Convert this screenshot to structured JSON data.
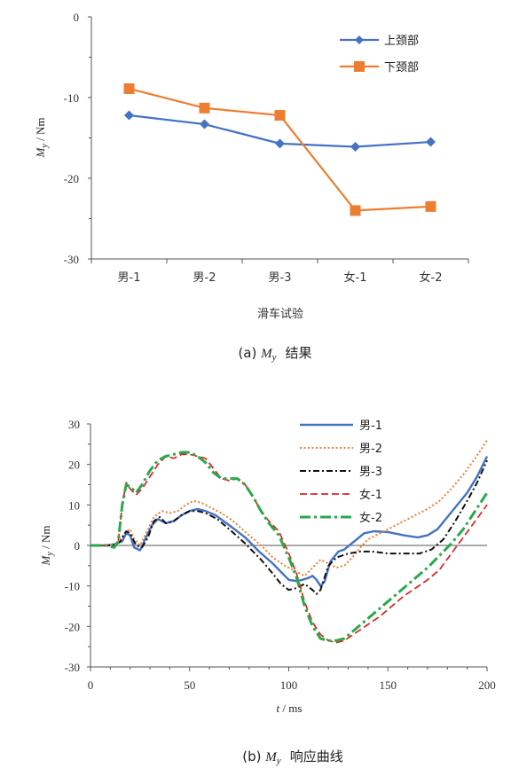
{
  "chart_data": [
    {
      "type": "line",
      "categories": [
        "男-1",
        "男-2",
        "男-3",
        "女-1",
        "女-2"
      ],
      "series": [
        {
          "name": "上颈部",
          "values": [
            -12.2,
            -13.3,
            -15.7,
            -16.1,
            -15.5
          ],
          "color": "#4472C4",
          "marker": "diamond"
        },
        {
          "name": "下颈部",
          "values": [
            -8.9,
            -11.3,
            -12.2,
            -24.0,
            -23.5
          ],
          "color": "#ED7D31",
          "marker": "square"
        }
      ],
      "ylabel_main": "M",
      "ylabel_sub": "y",
      "ylabel_unit": " / Nm",
      "xlabel": "滑车试验",
      "ylim": [
        -30,
        0
      ],
      "yticks": [
        0,
        -10,
        -20,
        -30
      ],
      "legend_position": "top-right",
      "caption_prefix": "(a) ",
      "caption_main": "M",
      "caption_sub": "y",
      "caption_suffix": "结果"
    },
    {
      "type": "line",
      "xlabel_main": "t",
      "xlabel_unit": " / ms",
      "ylabel_main": "M",
      "ylabel_sub": "y",
      "ylabel_unit": " / Nm",
      "xlim": [
        0,
        200
      ],
      "ylim": [
        -30,
        30
      ],
      "xticks": [
        0,
        50,
        100,
        150,
        200
      ],
      "yticks": [
        30,
        20,
        10,
        0,
        -10,
        -20,
        -30
      ],
      "legend_position": "top-right",
      "series": [
        {
          "name": "男-1",
          "color": "#4472C4",
          "dash": "",
          "width": 2.4,
          "points": [
            [
              0,
              0
            ],
            [
              8,
              0
            ],
            [
              12,
              0.3
            ],
            [
              16,
              1
            ],
            [
              18,
              3
            ],
            [
              20,
              2.5
            ],
            [
              22,
              -0.5
            ],
            [
              25,
              -1.2
            ],
            [
              28,
              2
            ],
            [
              31,
              5
            ],
            [
              34,
              6.5
            ],
            [
              38,
              5.5
            ],
            [
              42,
              6
            ],
            [
              46,
              7.5
            ],
            [
              50,
              8.5
            ],
            [
              54,
              9
            ],
            [
              58,
              8.5
            ],
            [
              63,
              7.5
            ],
            [
              70,
              5
            ],
            [
              78,
              2
            ],
            [
              85,
              -1.5
            ],
            [
              92,
              -4.5
            ],
            [
              97,
              -7
            ],
            [
              100,
              -8.5
            ],
            [
              104,
              -8.8
            ],
            [
              107,
              -8.5
            ],
            [
              110,
              -8
            ],
            [
              112,
              -7.5
            ],
            [
              114,
              -8.5
            ],
            [
              116,
              -10
            ],
            [
              118,
              -9
            ],
            [
              121,
              -4
            ],
            [
              125,
              -1.5
            ],
            [
              128,
              -1
            ],
            [
              133,
              1
            ],
            [
              138,
              3
            ],
            [
              143,
              3.5
            ],
            [
              150,
              3.3
            ],
            [
              158,
              2.5
            ],
            [
              165,
              2
            ],
            [
              170,
              2.5
            ],
            [
              175,
              4
            ],
            [
              180,
              7
            ],
            [
              185,
              10
            ],
            [
              190,
              13
            ],
            [
              195,
              17
            ],
            [
              200,
              22
            ]
          ]
        },
        {
          "name": "男-2",
          "color": "#ED7D31",
          "dash": "2 2.5",
          "width": 2,
          "points": [
            [
              0,
              0
            ],
            [
              8,
              0
            ],
            [
              14,
              0.5
            ],
            [
              17,
              3
            ],
            [
              20,
              4
            ],
            [
              22,
              1.5
            ],
            [
              25,
              0
            ],
            [
              28,
              3
            ],
            [
              32,
              7
            ],
            [
              36,
              8.5
            ],
            [
              40,
              8
            ],
            [
              44,
              8.5
            ],
            [
              48,
              10
            ],
            [
              52,
              11
            ],
            [
              56,
              10.5
            ],
            [
              60,
              9.5
            ],
            [
              66,
              8
            ],
            [
              72,
              6
            ],
            [
              80,
              2.5
            ],
            [
              86,
              0
            ],
            [
              92,
              -3
            ],
            [
              98,
              -5
            ],
            [
              104,
              -6.5
            ],
            [
              108,
              -7.5
            ],
            [
              112,
              -5.5
            ],
            [
              116,
              -3.5
            ],
            [
              120,
              -4.5
            ],
            [
              124,
              -5.5
            ],
            [
              128,
              -5
            ],
            [
              132,
              -3
            ],
            [
              136,
              -0.5
            ],
            [
              140,
              1.5
            ],
            [
              146,
              3
            ],
            [
              152,
              4.5
            ],
            [
              158,
              6
            ],
            [
              164,
              7.5
            ],
            [
              170,
              9
            ],
            [
              176,
              11
            ],
            [
              182,
              14
            ],
            [
              188,
              17.5
            ],
            [
              194,
              21.5
            ],
            [
              200,
              26
            ]
          ]
        },
        {
          "name": "男-3",
          "color": "#111111",
          "dash": "7 3 2 3",
          "width": 2,
          "points": [
            [
              0,
              0
            ],
            [
              8,
              0
            ],
            [
              12,
              0
            ],
            [
              15,
              1
            ],
            [
              18,
              3.5
            ],
            [
              20,
              3
            ],
            [
              23,
              0
            ],
            [
              26,
              -0.5
            ],
            [
              29,
              2
            ],
            [
              32,
              6
            ],
            [
              35,
              7
            ],
            [
              38,
              5.5
            ],
            [
              42,
              6
            ],
            [
              46,
              7.5
            ],
            [
              50,
              8.5
            ],
            [
              54,
              8.5
            ],
            [
              58,
              8
            ],
            [
              64,
              6.5
            ],
            [
              70,
              4
            ],
            [
              78,
              0.5
            ],
            [
              86,
              -3.5
            ],
            [
              92,
              -7
            ],
            [
              96,
              -9.5
            ],
            [
              100,
              -11
            ],
            [
              104,
              -10.5
            ],
            [
              108,
              -9.5
            ],
            [
              112,
              -11
            ],
            [
              114,
              -12
            ],
            [
              116,
              -11
            ],
            [
              118,
              -8
            ],
            [
              120,
              -5
            ],
            [
              124,
              -3
            ],
            [
              130,
              -2
            ],
            [
              136,
              -1.5
            ],
            [
              142,
              -1.5
            ],
            [
              150,
              -2
            ],
            [
              158,
              -2
            ],
            [
              166,
              -2
            ],
            [
              172,
              -1
            ],
            [
              178,
              1.5
            ],
            [
              184,
              6
            ],
            [
              190,
              11
            ],
            [
              195,
              15.5
            ],
            [
              200,
              21
            ]
          ]
        },
        {
          "name": "女-1",
          "color": "#E02020",
          "dash": "8 4",
          "width": 1.7,
          "points": [
            [
              0,
              0
            ],
            [
              8,
              0
            ],
            [
              12,
              -0.5
            ],
            [
              14,
              1
            ],
            [
              16,
              10
            ],
            [
              18,
              15.5
            ],
            [
              20,
              14
            ],
            [
              23,
              12.5
            ],
            [
              26,
              14
            ],
            [
              30,
              17
            ],
            [
              34,
              20
            ],
            [
              38,
              22
            ],
            [
              42,
              21.5
            ],
            [
              46,
              22.5
            ],
            [
              50,
              22.5
            ],
            [
              54,
              22
            ],
            [
              58,
              21.5
            ],
            [
              62,
              19
            ],
            [
              66,
              16.5
            ],
            [
              70,
              16
            ],
            [
              74,
              16.5
            ],
            [
              78,
              15
            ],
            [
              82,
              12
            ],
            [
              86,
              8.5
            ],
            [
              90,
              6
            ],
            [
              95,
              3.5
            ],
            [
              100,
              -2
            ],
            [
              104,
              -7
            ],
            [
              108,
              -14
            ],
            [
              112,
              -19
            ],
            [
              116,
              -22
            ],
            [
              120,
              -23.5
            ],
            [
              124,
              -24
            ],
            [
              128,
              -23.5
            ],
            [
              134,
              -21.5
            ],
            [
              140,
              -19.5
            ],
            [
              146,
              -17.5
            ],
            [
              152,
              -15
            ],
            [
              158,
              -12.5
            ],
            [
              164,
              -10.5
            ],
            [
              170,
              -8.5
            ],
            [
              176,
              -6
            ],
            [
              182,
              -2
            ],
            [
              188,
              2
            ],
            [
              194,
              6
            ],
            [
              200,
              10
            ]
          ]
        },
        {
          "name": "女-2",
          "color": "#2BA84A",
          "dash": "12 4 3 4",
          "width": 3,
          "points": [
            [
              0,
              0
            ],
            [
              8,
              0
            ],
            [
              12,
              -0.5
            ],
            [
              14,
              1
            ],
            [
              16,
              10
            ],
            [
              18,
              15
            ],
            [
              20,
              14.5
            ],
            [
              23,
              13
            ],
            [
              26,
              15
            ],
            [
              30,
              18.5
            ],
            [
              34,
              21
            ],
            [
              38,
              22
            ],
            [
              42,
              22.5
            ],
            [
              46,
              23
            ],
            [
              50,
              23
            ],
            [
              54,
              22
            ],
            [
              58,
              20.5
            ],
            [
              62,
              18
            ],
            [
              66,
              16.5
            ],
            [
              70,
              16.5
            ],
            [
              74,
              16.5
            ],
            [
              78,
              15
            ],
            [
              82,
              12
            ],
            [
              86,
              8.5
            ],
            [
              90,
              5.5
            ],
            [
              95,
              2.5
            ],
            [
              100,
              -3
            ],
            [
              104,
              -8
            ],
            [
              108,
              -15
            ],
            [
              112,
              -20
            ],
            [
              116,
              -23
            ],
            [
              120,
              -23.5
            ],
            [
              124,
              -23.5
            ],
            [
              128,
              -23
            ],
            [
              134,
              -20.5
            ],
            [
              140,
              -18
            ],
            [
              146,
              -15.5
            ],
            [
              152,
              -13
            ],
            [
              158,
              -10.5
            ],
            [
              164,
              -8
            ],
            [
              170,
              -5.5
            ],
            [
              176,
              -2.5
            ],
            [
              182,
              0.5
            ],
            [
              188,
              4
            ],
            [
              194,
              8.5
            ],
            [
              200,
              13
            ]
          ]
        }
      ],
      "caption_prefix": "(b) ",
      "caption_main": "M",
      "caption_sub": "y",
      "caption_suffix": "响应曲线"
    }
  ]
}
